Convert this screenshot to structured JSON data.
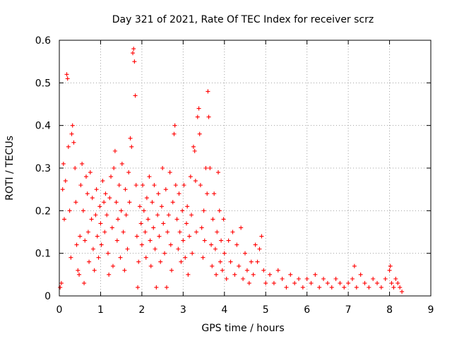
{
  "chart_data": {
    "type": "scatter",
    "title": "Day 321 of 2021, Rate Of TEC Index for receiver scrz",
    "xlabel": "GPS time / hours",
    "ylabel": "ROTI / TECUs",
    "xlim": [
      0,
      9
    ],
    "ylim": [
      0,
      0.6
    ],
    "x_ticks": [
      "0",
      "1",
      "2",
      "3",
      "4",
      "5",
      "6",
      "7",
      "8",
      "9"
    ],
    "y_ticks": [
      "0",
      "0.1",
      "0.2",
      "0.3",
      "0.4",
      "0.5",
      "0.6"
    ],
    "grid": true,
    "marker": "+",
    "color": "#ff0000",
    "series": [
      {
        "name": "ROTI",
        "points": [
          [
            0.02,
            0.02
          ],
          [
            0.05,
            0.03
          ],
          [
            0.08,
            0.25
          ],
          [
            0.1,
            0.31
          ],
          [
            0.12,
            0.18
          ],
          [
            0.15,
            0.27
          ],
          [
            0.18,
            0.52
          ],
          [
            0.2,
            0.51
          ],
          [
            0.22,
            0.35
          ],
          [
            0.25,
            0.2
          ],
          [
            0.28,
            0.09
          ],
          [
            0.3,
            0.38
          ],
          [
            0.32,
            0.4
          ],
          [
            0.35,
            0.36
          ],
          [
            0.38,
            0.3
          ],
          [
            0.4,
            0.22
          ],
          [
            0.42,
            0.12
          ],
          [
            0.45,
            0.06
          ],
          [
            0.48,
            0.05
          ],
          [
            0.5,
            0.14
          ],
          [
            0.52,
            0.26
          ],
          [
            0.55,
            0.31
          ],
          [
            0.58,
            0.2
          ],
          [
            0.6,
            0.03
          ],
          [
            0.62,
            0.13
          ],
          [
            0.65,
            0.28
          ],
          [
            0.68,
            0.24
          ],
          [
            0.7,
            0.15
          ],
          [
            0.72,
            0.08
          ],
          [
            0.75,
            0.29
          ],
          [
            0.78,
            0.18
          ],
          [
            0.8,
            0.23
          ],
          [
            0.82,
            0.11
          ],
          [
            0.85,
            0.06
          ],
          [
            0.88,
            0.19
          ],
          [
            0.9,
            0.25
          ],
          [
            0.92,
            0.14
          ],
          [
            0.95,
            0.09
          ],
          [
            0.98,
            0.21
          ],
          [
            1.0,
            0.17
          ],
          [
            1.02,
            0.12
          ],
          [
            1.05,
            0.27
          ],
          [
            1.08,
            0.22
          ],
          [
            1.1,
            0.15
          ],
          [
            1.12,
            0.24
          ],
          [
            1.15,
            0.19
          ],
          [
            1.18,
            0.1
          ],
          [
            1.2,
            0.05
          ],
          [
            1.22,
            0.23
          ],
          [
            1.25,
            0.28
          ],
          [
            1.28,
            0.16
          ],
          [
            1.3,
            0.07
          ],
          [
            1.32,
            0.3
          ],
          [
            1.35,
            0.34
          ],
          [
            1.38,
            0.22
          ],
          [
            1.4,
            0.13
          ],
          [
            1.42,
            0.18
          ],
          [
            1.45,
            0.26
          ],
          [
            1.48,
            0.09
          ],
          [
            1.5,
            0.2
          ],
          [
            1.52,
            0.31
          ],
          [
            1.55,
            0.15
          ],
          [
            1.58,
            0.06
          ],
          [
            1.6,
            0.25
          ],
          [
            1.62,
            0.19
          ],
          [
            1.65,
            0.11
          ],
          [
            1.68,
            0.29
          ],
          [
            1.7,
            0.22
          ],
          [
            1.72,
            0.37
          ],
          [
            1.75,
            0.35
          ],
          [
            1.78,
            0.57
          ],
          [
            1.8,
            0.58
          ],
          [
            1.82,
            0.55
          ],
          [
            1.84,
            0.47
          ],
          [
            1.86,
            0.26
          ],
          [
            1.88,
            0.14
          ],
          [
            1.9,
            0.02
          ],
          [
            1.92,
            0.08
          ],
          [
            1.95,
            0.21
          ],
          [
            1.98,
            0.17
          ],
          [
            2.0,
            0.12
          ],
          [
            2.02,
            0.26
          ],
          [
            2.05,
            0.2
          ],
          [
            2.08,
            0.15
          ],
          [
            2.1,
            0.09
          ],
          [
            2.12,
            0.23
          ],
          [
            2.15,
            0.18
          ],
          [
            2.18,
            0.28
          ],
          [
            2.2,
            0.13
          ],
          [
            2.22,
            0.07
          ],
          [
            2.25,
            0.22
          ],
          [
            2.28,
            0.16
          ],
          [
            2.3,
            0.26
          ],
          [
            2.32,
            0.11
          ],
          [
            2.35,
            0.02
          ],
          [
            2.38,
            0.19
          ],
          [
            2.4,
            0.24
          ],
          [
            2.42,
            0.14
          ],
          [
            2.45,
            0.08
          ],
          [
            2.48,
            0.21
          ],
          [
            2.5,
            0.3
          ],
          [
            2.52,
            0.17
          ],
          [
            2.55,
            0.1
          ],
          [
            2.58,
            0.25
          ],
          [
            2.6,
            0.02
          ],
          [
            2.62,
            0.15
          ],
          [
            2.65,
            0.19
          ],
          [
            2.68,
            0.29
          ],
          [
            2.7,
            0.12
          ],
          [
            2.72,
            0.06
          ],
          [
            2.75,
            0.22
          ],
          [
            2.78,
            0.38
          ],
          [
            2.8,
            0.4
          ],
          [
            2.82,
            0.26
          ],
          [
            2.85,
            0.18
          ],
          [
            2.88,
            0.11
          ],
          [
            2.9,
            0.24
          ],
          [
            2.92,
            0.15
          ],
          [
            2.95,
            0.08
          ],
          [
            2.98,
            0.2
          ],
          [
            3.0,
            0.13
          ],
          [
            3.02,
            0.26
          ],
          [
            3.05,
            0.09
          ],
          [
            3.08,
            0.17
          ],
          [
            3.1,
            0.21
          ],
          [
            3.12,
            0.05
          ],
          [
            3.15,
            0.14
          ],
          [
            3.18,
            0.28
          ],
          [
            3.2,
            0.19
          ],
          [
            3.22,
            0.1
          ],
          [
            3.25,
            0.35
          ],
          [
            3.28,
            0.34
          ],
          [
            3.3,
            0.27
          ],
          [
            3.32,
            0.15
          ],
          [
            3.35,
            0.42
          ],
          [
            3.38,
            0.44
          ],
          [
            3.4,
            0.38
          ],
          [
            3.42,
            0.26
          ],
          [
            3.45,
            0.16
          ],
          [
            3.48,
            0.09
          ],
          [
            3.5,
            0.2
          ],
          [
            3.52,
            0.13
          ],
          [
            3.55,
            0.3
          ],
          [
            3.58,
            0.24
          ],
          [
            3.6,
            0.48
          ],
          [
            3.62,
            0.42
          ],
          [
            3.65,
            0.3
          ],
          [
            3.68,
            0.12
          ],
          [
            3.7,
            0.07
          ],
          [
            3.72,
            0.18
          ],
          [
            3.75,
            0.24
          ],
          [
            3.78,
            0.11
          ],
          [
            3.8,
            0.05
          ],
          [
            3.82,
            0.15
          ],
          [
            3.85,
            0.29
          ],
          [
            3.88,
            0.2
          ],
          [
            3.9,
            0.08
          ],
          [
            3.92,
            0.13
          ],
          [
            3.95,
            0.06
          ],
          [
            3.98,
            0.18
          ],
          [
            4.0,
            0.1
          ],
          [
            4.05,
            0.04
          ],
          [
            4.1,
            0.13
          ],
          [
            4.15,
            0.08
          ],
          [
            4.2,
            0.15
          ],
          [
            4.25,
            0.05
          ],
          [
            4.3,
            0.12
          ],
          [
            4.35,
            0.07
          ],
          [
            4.4,
            0.16
          ],
          [
            4.45,
            0.04
          ],
          [
            4.5,
            0.1
          ],
          [
            4.55,
            0.06
          ],
          [
            4.6,
            0.03
          ],
          [
            4.65,
            0.08
          ],
          [
            4.7,
            0.05
          ],
          [
            4.75,
            0.12
          ],
          [
            4.8,
            0.08
          ],
          [
            4.85,
            0.11
          ],
          [
            4.9,
            0.14
          ],
          [
            4.95,
            0.06
          ],
          [
            5.0,
            0.03
          ],
          [
            5.1,
            0.05
          ],
          [
            5.2,
            0.03
          ],
          [
            5.3,
            0.06
          ],
          [
            5.4,
            0.04
          ],
          [
            5.5,
            0.02
          ],
          [
            5.6,
            0.05
          ],
          [
            5.7,
            0.03
          ],
          [
            5.8,
            0.04
          ],
          [
            5.9,
            0.02
          ],
          [
            6.0,
            0.04
          ],
          [
            6.1,
            0.03
          ],
          [
            6.2,
            0.05
          ],
          [
            6.3,
            0.02
          ],
          [
            6.4,
            0.04
          ],
          [
            6.5,
            0.03
          ],
          [
            6.6,
            0.02
          ],
          [
            6.7,
            0.04
          ],
          [
            6.8,
            0.03
          ],
          [
            6.9,
            0.02
          ],
          [
            7.0,
            0.03
          ],
          [
            7.1,
            0.04
          ],
          [
            7.15,
            0.07
          ],
          [
            7.2,
            0.02
          ],
          [
            7.3,
            0.05
          ],
          [
            7.4,
            0.03
          ],
          [
            7.5,
            0.02
          ],
          [
            7.6,
            0.04
          ],
          [
            7.7,
            0.03
          ],
          [
            7.8,
            0.02
          ],
          [
            7.9,
            0.04
          ],
          [
            8.0,
            0.06
          ],
          [
            8.02,
            0.07
          ],
          [
            8.05,
            0.03
          ],
          [
            8.1,
            0.02
          ],
          [
            8.15,
            0.04
          ],
          [
            8.2,
            0.03
          ],
          [
            8.25,
            0.02
          ],
          [
            8.3,
            0.01
          ]
        ]
      }
    ]
  }
}
